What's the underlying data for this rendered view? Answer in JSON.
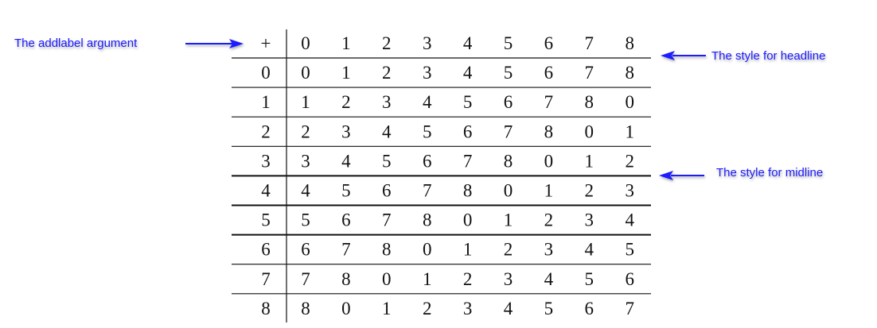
{
  "table": {
    "corner": "+",
    "header": [
      "0",
      "1",
      "2",
      "3",
      "4",
      "5",
      "6",
      "7",
      "8"
    ],
    "rows": [
      {
        "label": "0",
        "cells": [
          "0",
          "1",
          "2",
          "3",
          "4",
          "5",
          "6",
          "7",
          "8"
        ]
      },
      {
        "label": "1",
        "cells": [
          "1",
          "2",
          "3",
          "4",
          "5",
          "6",
          "7",
          "8",
          "0"
        ]
      },
      {
        "label": "2",
        "cells": [
          "2",
          "3",
          "4",
          "5",
          "6",
          "7",
          "8",
          "0",
          "1"
        ]
      },
      {
        "label": "3",
        "cells": [
          "3",
          "4",
          "5",
          "6",
          "7",
          "8",
          "0",
          "1",
          "2"
        ]
      },
      {
        "label": "4",
        "cells": [
          "4",
          "5",
          "6",
          "7",
          "8",
          "0",
          "1",
          "2",
          "3"
        ]
      },
      {
        "label": "5",
        "cells": [
          "5",
          "6",
          "7",
          "8",
          "0",
          "1",
          "2",
          "3",
          "4"
        ]
      },
      {
        "label": "6",
        "cells": [
          "6",
          "7",
          "8",
          "0",
          "1",
          "2",
          "3",
          "4",
          "5"
        ]
      },
      {
        "label": "7",
        "cells": [
          "7",
          "8",
          "0",
          "1",
          "2",
          "3",
          "4",
          "5",
          "6"
        ]
      },
      {
        "label": "8",
        "cells": [
          "8",
          "0",
          "1",
          "2",
          "3",
          "4",
          "5",
          "6",
          "7"
        ]
      }
    ],
    "thick_lines_after_rows": [
      "3",
      "4",
      "5"
    ]
  },
  "annotations": {
    "addlabel": "The addlabel argument",
    "headline": "The style for headline",
    "midline": "The style for midline"
  },
  "colors": {
    "annotation": "#1a1aff",
    "lines": "#111111"
  }
}
